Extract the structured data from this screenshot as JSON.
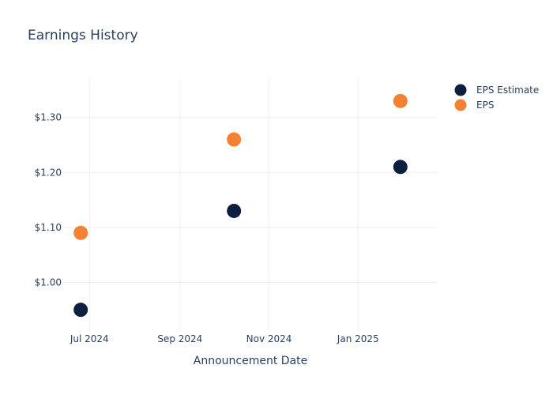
{
  "chart_data": {
    "type": "scatter",
    "title": "Earnings History",
    "xlabel": "Announcement Date",
    "ylabel": "",
    "x_ticks": [
      {
        "date": "2024-07-01",
        "label": "Jul 2024"
      },
      {
        "date": "2024-09-01",
        "label": "Sep 2024"
      },
      {
        "date": "2024-11-01",
        "label": "Nov 2024"
      },
      {
        "date": "2025-01-01",
        "label": "Jan 2025"
      }
    ],
    "y_ticks": [
      {
        "value": 1.0,
        "label": "$1.00"
      },
      {
        "value": 1.1,
        "label": "$1.10"
      },
      {
        "value": 1.2,
        "label": "$1.20"
      },
      {
        "value": 1.3,
        "label": "$1.30"
      }
    ],
    "xlim": [
      "2024-06-13",
      "2025-02-24"
    ],
    "ylim": [
      0.91,
      1.37
    ],
    "grid": true,
    "legend_position": "top-right",
    "series": [
      {
        "name": "EPS Estimate",
        "color": "#0d1f3f",
        "points": [
          {
            "x": "2024-06-25",
            "y": 0.95
          },
          {
            "x": "2024-10-08",
            "y": 1.13
          },
          {
            "x": "2025-01-30",
            "y": 1.21
          }
        ]
      },
      {
        "name": "EPS",
        "color": "#f58232",
        "points": [
          {
            "x": "2024-06-25",
            "y": 1.09
          },
          {
            "x": "2024-10-08",
            "y": 1.26
          },
          {
            "x": "2025-01-30",
            "y": 1.33
          }
        ]
      }
    ]
  }
}
